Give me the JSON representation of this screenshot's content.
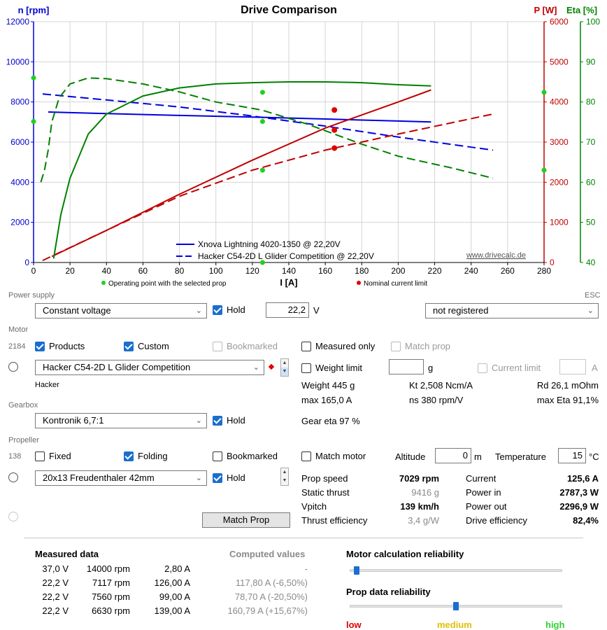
{
  "chart_data": {
    "type": "line",
    "title": "Drive Comparison",
    "xlabel": "I [A]",
    "ylabel_left": "n [rpm]",
    "ylabel_right1": "P [W]",
    "ylabel_right2": "Eta [%]",
    "xlim": [
      0,
      280
    ],
    "ylim_left": [
      0,
      12000
    ],
    "ylim_p": [
      0,
      6000
    ],
    "ylim_eta": [
      40,
      100
    ],
    "xticks": [
      0,
      20,
      40,
      60,
      80,
      100,
      120,
      140,
      160,
      180,
      200,
      220,
      240,
      260,
      280
    ],
    "yticks_left": [
      0,
      2000,
      4000,
      6000,
      8000,
      10000,
      12000
    ],
    "yticks_p": [
      0,
      1000,
      2000,
      3000,
      4000,
      5000,
      6000
    ],
    "yticks_eta": [
      40,
      50,
      60,
      70,
      80,
      90,
      100
    ],
    "grid": true,
    "watermark": "www.drivecalc.de",
    "legend": [
      {
        "label": "Xnova Lightning 4020-1350 @ 22,20V",
        "style": "solid",
        "color": "#0000e0"
      },
      {
        "label": "Hacker C54-2D L Glider Competition @ 22,20V",
        "style": "dashed",
        "color": "#0000e0"
      }
    ],
    "footnotes": {
      "operating": "Operating point with the selected prop",
      "nominal": "Nominal current limit"
    },
    "series": [
      {
        "axis": "rpm",
        "style": "solid",
        "color": "#0000e0",
        "x": [
          8,
          40,
          80,
          120,
          160,
          200,
          218
        ],
        "y": [
          7500,
          7420,
          7330,
          7250,
          7150,
          7050,
          7000
        ]
      },
      {
        "axis": "rpm",
        "style": "dashed",
        "color": "#0000e0",
        "x": [
          5,
          40,
          80,
          120,
          160,
          200,
          252
        ],
        "y": [
          8400,
          8100,
          7750,
          7300,
          6800,
          6250,
          5600
        ]
      },
      {
        "axis": "power",
        "style": "solid",
        "color": "#c00000",
        "x": [
          10,
          40,
          80,
          120,
          160,
          200,
          218
        ],
        "y": [
          150,
          800,
          1700,
          2550,
          3350,
          4000,
          4300
        ]
      },
      {
        "axis": "power",
        "style": "dashed",
        "color": "#c00000",
        "x": [
          5,
          40,
          80,
          120,
          160,
          200,
          252
        ],
        "y": [
          50,
          800,
          1650,
          2300,
          2800,
          3200,
          3700
        ]
      },
      {
        "axis": "eta",
        "style": "solid",
        "color": "#008000",
        "x": [
          11,
          15,
          20,
          30,
          40,
          60,
          80,
          100,
          120,
          140,
          160,
          180,
          200,
          218
        ],
        "y": [
          41,
          52,
          61,
          72,
          77,
          81.5,
          83.5,
          84.5,
          84.8,
          85,
          85,
          84.8,
          84.3,
          84
        ]
      },
      {
        "axis": "eta",
        "style": "dashed",
        "color": "#008000",
        "x": [
          4,
          6,
          8,
          10,
          14,
          20,
          30,
          40,
          60,
          80,
          100,
          125,
          150,
          180,
          200,
          230,
          252
        ],
        "y": [
          60,
          63,
          68,
          75,
          81,
          84.5,
          86,
          85.8,
          84.5,
          82.5,
          80,
          78,
          74.5,
          69.5,
          66.5,
          63.5,
          61
        ]
      }
    ],
    "markers": {
      "operating": [
        {
          "x": 125.6,
          "axis": "rpm",
          "y": 7029
        },
        {
          "x": 125.6,
          "axis": "eta",
          "y": 82.4
        },
        {
          "x": 125.6,
          "axis": "power",
          "y": 2300
        },
        {
          "x": 125.6,
          "axis": "power",
          "y": 0
        },
        {
          "x": 0,
          "axis": "rpm",
          "y": 7029
        },
        {
          "x": 0,
          "axis": "power",
          "y": 4600
        },
        {
          "x": 280,
          "axis": "eta",
          "y": 82.4
        },
        {
          "x": 280,
          "axis": "power",
          "y": 2300
        }
      ],
      "nominal": [
        {
          "x": 165,
          "axis": "power",
          "y": 3800
        },
        {
          "x": 165,
          "axis": "power",
          "y": 3300
        },
        {
          "x": 165,
          "axis": "power",
          "y": 2850
        }
      ]
    }
  },
  "power_supply": {
    "section": "Power supply",
    "mode": "Constant voltage",
    "hold_label": "Hold",
    "voltage": "22,2",
    "unit": "V",
    "esc_label": "ESC",
    "esc": "not registered"
  },
  "motor": {
    "section": "Motor",
    "count": "2184",
    "products": "Products",
    "custom": "Custom",
    "bookmarked": "Bookmarked",
    "measured_only": "Measured only",
    "match_prop": "Match prop",
    "selected": "Hacker C54-2D L Glider Competition",
    "manufacturer": "Hacker",
    "weight_limit": "Weight limit",
    "weight_unit": "g",
    "current_limit": "Current limit",
    "current_unit": "A",
    "weight": "Weight 445 g",
    "kt": "Kt 2,508 Ncm/A",
    "rd": "Rd 26,1 mOhm",
    "max_current": "max 165,0 A",
    "ns": "ns 380 rpm/V",
    "max_eta": "max Eta 91,1%"
  },
  "gearbox": {
    "section": "Gearbox",
    "selected": "Kontronik 6,7:1",
    "hold_label": "Hold",
    "gear_eta": "Gear eta 97 %"
  },
  "propeller": {
    "section": "Propeller",
    "count": "138",
    "fixed": "Fixed",
    "folding": "Folding",
    "bookmarked": "Bookmarked",
    "match_motor": "Match motor",
    "altitude_label": "Altitude",
    "altitude": "0",
    "altitude_unit": "m",
    "temperature_label": "Temperature",
    "temperature": "15",
    "temperature_unit": "°C",
    "selected": "20x13 Freudenthaler 42mm",
    "hold_label": "Hold",
    "match_prop_button": "Match Prop"
  },
  "results": {
    "prop_speed_label": "Prop speed",
    "prop_speed": "7029 rpm",
    "static_thrust_label": "Static thrust",
    "static_thrust": "9416 g",
    "vpitch_label": "Vpitch",
    "vpitch": "139 km/h",
    "thrust_eff_label": "Thrust efficiency",
    "thrust_eff": "3,4 g/W",
    "current_label": "Current",
    "current": "125,6 A",
    "power_in_label": "Power in",
    "power_in": "2787,3 W",
    "power_out_label": "Power out",
    "power_out": "2296,9 W",
    "drive_eff_label": "Drive efficiency",
    "drive_eff": "82,4%"
  },
  "measured": {
    "title": "Measured data",
    "computed_title": "Computed values",
    "rows": [
      {
        "v": "37,0 V",
        "rpm": "14000 rpm",
        "a": "2,80 A",
        "computed": "-"
      },
      {
        "v": "22,2 V",
        "rpm": "7117 rpm",
        "a": "126,00 A",
        "computed": "117,80 A (-6,50%)"
      },
      {
        "v": "22,2 V",
        "rpm": "7560 rpm",
        "a": "99,00 A",
        "computed": "78,70 A (-20,50%)"
      },
      {
        "v": "22,2 V",
        "rpm": "6630 rpm",
        "a": "139,00 A",
        "computed": "160,79 A (+15,67%)"
      }
    ]
  },
  "reliability": {
    "motor_title": "Motor calculation reliability",
    "motor_level": 0.02,
    "prop_title": "Prop data reliability",
    "prop_level": 0.5,
    "low": "low",
    "medium": "medium",
    "high": "high",
    "low_color": "#e00000",
    "medium_color": "#e0c000",
    "high_color": "#30d030"
  }
}
